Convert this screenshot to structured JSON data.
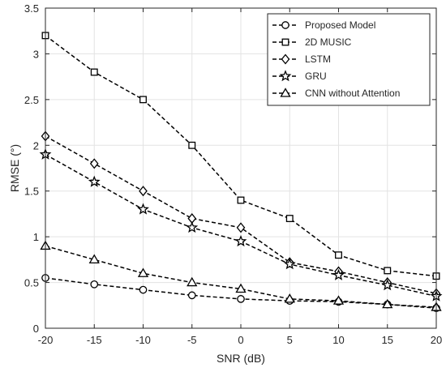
{
  "chart_data": {
    "type": "line",
    "title": "",
    "xlabel": "SNR (dB)",
    "ylabel": "RMSE (°)",
    "x": [
      -20,
      -15,
      -10,
      -5,
      0,
      5,
      10,
      15,
      20
    ],
    "xlim": [
      -20,
      20
    ],
    "ylim": [
      0,
      3.5
    ],
    "xticks": [
      "-20",
      "-15",
      "-10",
      "-5",
      "0",
      "5",
      "10",
      "15",
      "20"
    ],
    "yticks": [
      "0",
      "0.5",
      "1",
      "1.5",
      "2",
      "2.5",
      "3",
      "3.5"
    ],
    "grid": true,
    "legend_position": "top-right",
    "line_style": "dashed",
    "line_color": "#000000",
    "series": [
      {
        "name": "Proposed Model",
        "marker": "circle",
        "values": [
          0.55,
          0.48,
          0.42,
          0.36,
          0.32,
          0.3,
          0.29,
          0.26,
          0.22
        ]
      },
      {
        "name": "2D MUSIC",
        "marker": "square",
        "values": [
          3.2,
          2.8,
          2.5,
          2.0,
          1.4,
          1.2,
          0.8,
          0.63,
          0.57
        ]
      },
      {
        "name": "LSTM",
        "marker": "diamond",
        "values": [
          2.1,
          1.8,
          1.5,
          1.2,
          1.1,
          0.72,
          0.62,
          0.5,
          0.38
        ]
      },
      {
        "name": "GRU",
        "marker": "star",
        "values": [
          1.9,
          1.6,
          1.3,
          1.1,
          0.95,
          0.7,
          0.58,
          0.47,
          0.35
        ]
      },
      {
        "name": "CNN without Attention",
        "marker": "triangle",
        "values": [
          0.9,
          0.75,
          0.6,
          0.5,
          0.43,
          0.32,
          0.3,
          0.26,
          0.23
        ]
      }
    ]
  }
}
